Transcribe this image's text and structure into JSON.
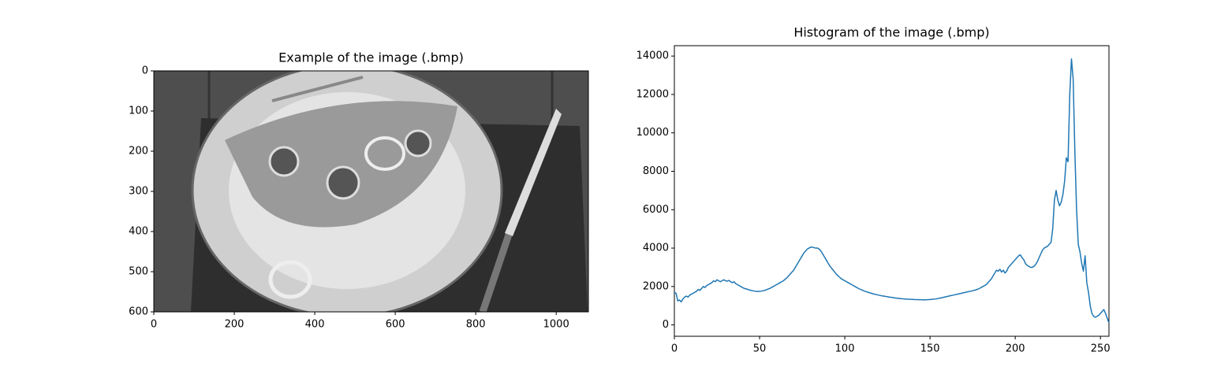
{
  "chart_data": [
    {
      "type": "image",
      "title": "Example of the image (.bmp)",
      "xlim": [
        0,
        1080
      ],
      "ylim": [
        600,
        0
      ],
      "xticks": [
        0,
        200,
        400,
        600,
        800,
        1000
      ],
      "yticks": [
        0,
        100,
        200,
        300,
        400,
        500,
        600
      ]
    },
    {
      "type": "line",
      "title": "Histogram of the image (.bmp)",
      "color": "#1f77b4",
      "xlim": [
        0,
        255
      ],
      "ylim": [
        -590,
        14540
      ],
      "xticks": [
        0,
        50,
        100,
        150,
        200,
        250
      ],
      "yticks": [
        0,
        2000,
        4000,
        6000,
        8000,
        10000,
        12000,
        14000
      ],
      "x": [
        0,
        1,
        2,
        3,
        4,
        5,
        6,
        7,
        8,
        9,
        10,
        11,
        12,
        13,
        14,
        15,
        16,
        17,
        18,
        19,
        20,
        21,
        22,
        23,
        24,
        25,
        26,
        27,
        28,
        29,
        30,
        31,
        32,
        33,
        34,
        35,
        36,
        37,
        38,
        39,
        40,
        41,
        42,
        43,
        44,
        45,
        46,
        47,
        48,
        49,
        50,
        51,
        52,
        53,
        54,
        55,
        56,
        57,
        58,
        59,
        60,
        61,
        62,
        63,
        64,
        65,
        66,
        67,
        68,
        69,
        70,
        71,
        72,
        73,
        74,
        75,
        76,
        77,
        78,
        79,
        80,
        81,
        82,
        83,
        84,
        85,
        86,
        87,
        88,
        89,
        90,
        91,
        92,
        93,
        94,
        95,
        96,
        97,
        98,
        99,
        100,
        101,
        102,
        103,
        104,
        105,
        106,
        107,
        108,
        109,
        110,
        111,
        112,
        113,
        114,
        115,
        116,
        117,
        118,
        119,
        120,
        121,
        122,
        123,
        124,
        125,
        126,
        127,
        128,
        129,
        130,
        131,
        132,
        133,
        134,
        135,
        136,
        137,
        138,
        139,
        140,
        141,
        142,
        143,
        144,
        145,
        146,
        147,
        148,
        149,
        150,
        151,
        152,
        153,
        154,
        155,
        156,
        157,
        158,
        159,
        160,
        161,
        162,
        163,
        164,
        165,
        166,
        167,
        168,
        169,
        170,
        171,
        172,
        173,
        174,
        175,
        176,
        177,
        178,
        179,
        180,
        181,
        182,
        183,
        184,
        185,
        186,
        187,
        188,
        189,
        190,
        191,
        192,
        193,
        194,
        195,
        196,
        197,
        198,
        199,
        200,
        201,
        202,
        203,
        204,
        205,
        206,
        207,
        208,
        209,
        210,
        211,
        212,
        213,
        214,
        215,
        216,
        217,
        218,
        219,
        220,
        221,
        222,
        223,
        224,
        225,
        226,
        227,
        228,
        229,
        230,
        231,
        232,
        233,
        234,
        235,
        236,
        237,
        238,
        239,
        240,
        241,
        242,
        243,
        244,
        245,
        246,
        247,
        248,
        249,
        250,
        251,
        252,
        253,
        254,
        255
      ],
      "values": [
        1700,
        1650,
        1250,
        1300,
        1200,
        1350,
        1450,
        1500,
        1450,
        1550,
        1600,
        1650,
        1700,
        1750,
        1850,
        1800,
        1900,
        2000,
        1950,
        2050,
        2100,
        2150,
        2200,
        2300,
        2250,
        2350,
        2300,
        2250,
        2300,
        2350,
        2300,
        2280,
        2320,
        2250,
        2200,
        2250,
        2150,
        2100,
        2050,
        2000,
        1950,
        1900,
        1880,
        1850,
        1820,
        1800,
        1780,
        1760,
        1750,
        1740,
        1750,
        1760,
        1780,
        1800,
        1830,
        1870,
        1900,
        1950,
        2000,
        2050,
        2100,
        2150,
        2200,
        2250,
        2300,
        2380,
        2450,
        2550,
        2650,
        2750,
        2850,
        3000,
        3150,
        3300,
        3450,
        3600,
        3750,
        3850,
        3950,
        4000,
        4050,
        4050,
        4020,
        4000,
        4000,
        3950,
        3850,
        3700,
        3550,
        3400,
        3250,
        3100,
        2980,
        2870,
        2760,
        2650,
        2560,
        2480,
        2400,
        2350,
        2300,
        2250,
        2200,
        2150,
        2100,
        2050,
        2000,
        1950,
        1900,
        1860,
        1820,
        1780,
        1750,
        1720,
        1690,
        1660,
        1640,
        1610,
        1590,
        1570,
        1550,
        1530,
        1510,
        1500,
        1480,
        1470,
        1450,
        1440,
        1430,
        1410,
        1400,
        1390,
        1380,
        1370,
        1360,
        1350,
        1345,
        1340,
        1335,
        1330,
        1325,
        1320,
        1318,
        1315,
        1312,
        1310,
        1308,
        1305,
        1310,
        1315,
        1320,
        1330,
        1340,
        1350,
        1365,
        1380,
        1400,
        1420,
        1440,
        1460,
        1480,
        1500,
        1520,
        1540,
        1560,
        1580,
        1600,
        1620,
        1640,
        1660,
        1680,
        1700,
        1720,
        1740,
        1760,
        1780,
        1800,
        1830,
        1860,
        1900,
        1950,
        2000,
        2050,
        2100,
        2200,
        2300,
        2400,
        2550,
        2700,
        2850,
        2800,
        2900,
        2750,
        2850,
        2700,
        2800,
        3000,
        3100,
        3200,
        3300,
        3400,
        3500,
        3600,
        3650,
        3500,
        3400,
        3200,
        3100,
        3050,
        3000,
        3000,
        3050,
        3150,
        3300,
        3500,
        3700,
        3900,
        4000,
        4050,
        4100,
        4200,
        4300,
        5000,
        6500,
        7000,
        6500,
        6200,
        6400,
        6800,
        7500,
        8700,
        8500,
        12000,
        13850,
        12800,
        9000,
        6000,
        4200,
        3800,
        3200,
        2800,
        3600,
        2200,
        1700,
        1000,
        600,
        450,
        400,
        450,
        500,
        600,
        700,
        800,
        600,
        350,
        100
      ]
    }
  ]
}
